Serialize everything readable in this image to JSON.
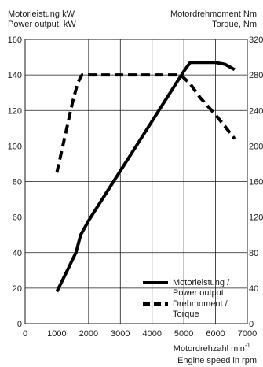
{
  "chart_data": {
    "type": "line",
    "title": "",
    "left_axis_label": [
      "Motorleistung kW",
      "Power output, kW"
    ],
    "right_axis_label": [
      "Motordrehmoment Nm",
      "Torque, Nm"
    ],
    "x_axis_label": [
      "Motordrehzahl min",
      "Engine speed in rpm"
    ],
    "x_axis_label_superscript": "-1",
    "xlim": [
      0,
      7000
    ],
    "ylim_left": [
      0,
      160
    ],
    "ylim_right": [
      0,
      320
    ],
    "x_ticks": [
      "0",
      "1000",
      "2000",
      "3000",
      "4000",
      "5000",
      "6000",
      "7000"
    ],
    "y_ticks_left": [
      "0",
      "20",
      "40",
      "60",
      "80",
      "100",
      "120",
      "140",
      "160"
    ],
    "y_ticks_right": [
      "0",
      "40",
      "80",
      "120",
      "160",
      "200",
      "240",
      "280",
      "320"
    ],
    "grid": true,
    "legend_position": "bottom-right",
    "series": [
      {
        "name": "Motorleistung / Power output",
        "axis": "left",
        "style": "solid",
        "color": "#000000",
        "x": [
          1000,
          1300,
          1600,
          1750,
          2000,
          2500,
          3000,
          3500,
          4000,
          4500,
          5000,
          5200,
          5500,
          6000,
          6300,
          6600
        ],
        "y": [
          18,
          29,
          40,
          50,
          58,
          72,
          86,
          100,
          114,
          128,
          142,
          147,
          147,
          147,
          146,
          143
        ]
      },
      {
        "name": "Drehmoment / Torque",
        "axis": "right",
        "style": "dashed",
        "color": "#000000",
        "x": [
          1000,
          1250,
          1500,
          1650,
          1750,
          1800,
          2000,
          3000,
          4000,
          4500,
          4900,
          5200,
          5500,
          6000,
          6300,
          6600
        ],
        "y": [
          170,
          210,
          250,
          270,
          278,
          280,
          280,
          280,
          280,
          280,
          280,
          270,
          255,
          235,
          222,
          208
        ]
      }
    ]
  }
}
